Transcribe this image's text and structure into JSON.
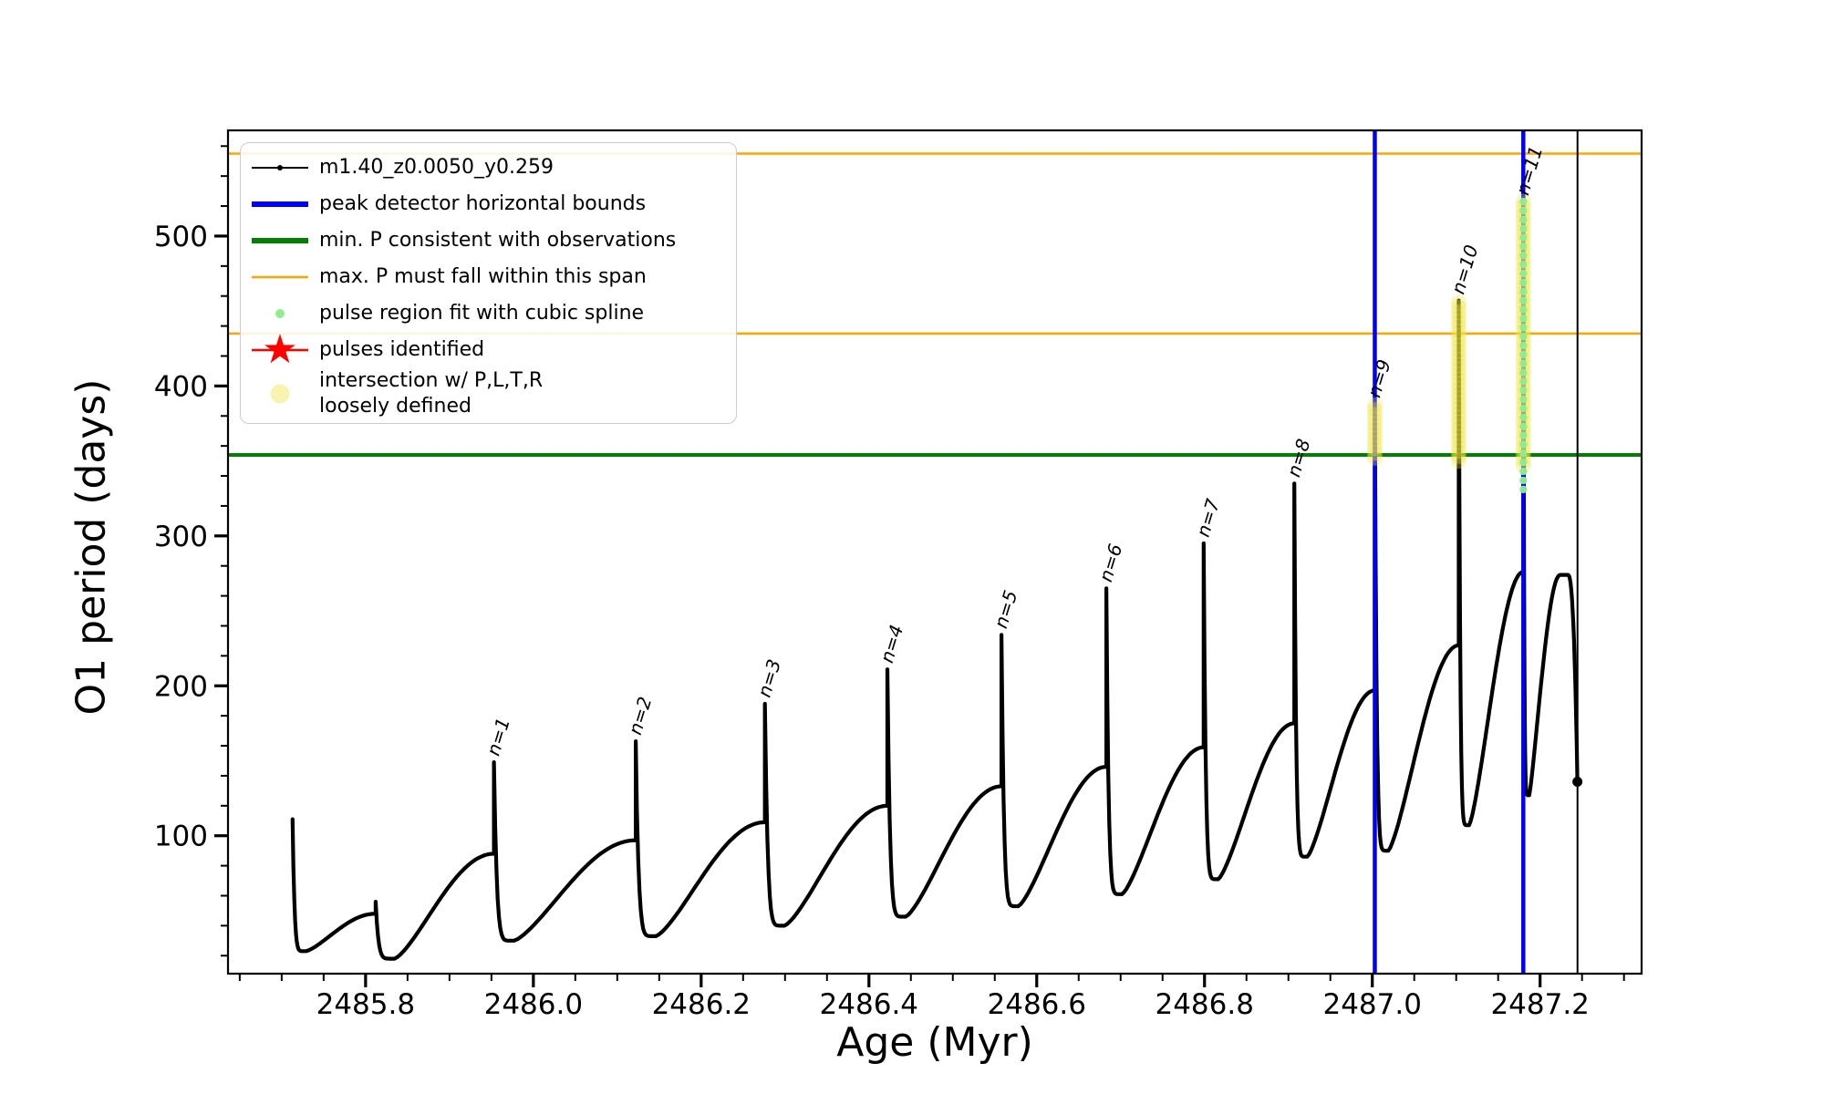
{
  "figure": {
    "background": "#ffffff"
  },
  "axes": {
    "xlabel": "Age (Myr)",
    "ylabel": "O1 period (days)",
    "x_tick_labels": [
      "2485.8",
      "2486.0",
      "2486.2",
      "2486.4",
      "2486.6",
      "2486.8",
      "2487.0",
      "2487.2"
    ],
    "y_tick_labels": [
      "100",
      "200",
      "300",
      "400",
      "500"
    ]
  },
  "legend": {
    "entries": [
      {
        "label": "m1.40_z0.0050_y0.259",
        "marker": "line_dot",
        "color": "#000000"
      },
      {
        "label": "peak detector horizontal bounds",
        "marker": "thick_line",
        "color": "#0000ff"
      },
      {
        "label": "min. P consistent with observations",
        "marker": "thick_line",
        "color": "#008000"
      },
      {
        "label": "max. P must fall within this span",
        "marker": "thin_line",
        "color": "#ffa500"
      },
      {
        "label": "pulse region fit with cubic spline",
        "marker": "dot_small",
        "color": "#90ee90"
      },
      {
        "label": "pulses identified",
        "marker": "star_line",
        "color": "#ff0000"
      },
      {
        "label": "intersection w/ P,L,T,R\nloosely defined",
        "marker": "dot_big",
        "color": "#f1ea62"
      }
    ]
  },
  "chart_data": {
    "type": "line",
    "title": "",
    "xlabel": "Age (Myr)",
    "ylabel": "O1 period (days)",
    "series_name": "m1.40_z0.0050_y0.259",
    "xlim": [
      2485.636,
      2487.321
    ],
    "ylim": [
      8,
      570.5
    ],
    "x_minor_step": 0.05,
    "y_minor_step": 20,
    "grid": false,
    "legend_position": "upper left",
    "colors": {
      "curve": "#000000",
      "peak_bounds": "#0000ff",
      "min_p": "#008000",
      "max_p": "#ffa500",
      "spline_fit": "#90ee90",
      "pulses_identified": "#ff0000",
      "intersection": "#efe73f",
      "terminal_line": "#000000"
    },
    "h_lines": [
      {
        "P": 555,
        "color_key": "max_p",
        "lw": 2.5,
        "name": "max-P-upper-line"
      },
      {
        "P": 435,
        "color_key": "max_p",
        "lw": 2.5,
        "name": "max-P-lower-line"
      },
      {
        "P": 354,
        "color_key": "min_p",
        "lw": 4,
        "name": "min-P-line"
      }
    ],
    "v_lines": [
      {
        "t": 2487.003,
        "color_key": "peak_bounds",
        "lw": 4.5,
        "name": "peak-bound-left"
      },
      {
        "t": 2487.18,
        "color_key": "peak_bounds",
        "lw": 4.5,
        "name": "peak-bound-right"
      },
      {
        "t": 2487.2446,
        "color_key": "terminal_line",
        "lw": 2,
        "name": "track-end-line"
      }
    ],
    "pulses": [
      {
        "label": "",
        "t": 2485.713,
        "peak": 111,
        "pre_max": null,
        "post_dip": 23
      },
      {
        "label": "",
        "t": 2485.812,
        "peak": 56,
        "pre_max": 48,
        "post_dip": 18
      },
      {
        "label": "n=1",
        "t": 2485.953,
        "peak": 149,
        "pre_max": 88,
        "post_dip": 30
      },
      {
        "label": "n=2",
        "t": 2486.122,
        "peak": 163,
        "pre_max": 97,
        "post_dip": 33
      },
      {
        "label": "n=3",
        "t": 2486.276,
        "peak": 188,
        "pre_max": 109,
        "post_dip": 40
      },
      {
        "label": "n=4",
        "t": 2486.422,
        "peak": 211,
        "pre_max": 120,
        "post_dip": 46
      },
      {
        "label": "n=5",
        "t": 2486.558,
        "peak": 234,
        "pre_max": 133,
        "post_dip": 53
      },
      {
        "label": "n=6",
        "t": 2486.683,
        "peak": 265,
        "pre_max": 146,
        "post_dip": 61
      },
      {
        "label": "n=7",
        "t": 2486.799,
        "peak": 295,
        "pre_max": 159,
        "post_dip": 71
      },
      {
        "label": "n=8",
        "t": 2486.907,
        "peak": 335,
        "pre_max": 175,
        "post_dip": 86
      },
      {
        "label": "n=9",
        "t": 2487.003,
        "peak": 388,
        "pre_max": 197,
        "post_dip": 90
      },
      {
        "label": "n=10",
        "t": 2487.103,
        "peak": 457,
        "pre_max": 227,
        "post_dip": 107
      },
      {
        "label": "n=11",
        "t": 2487.18,
        "peak": 523,
        "pre_max": 276,
        "post_dip": 127
      }
    ],
    "tail": {
      "top_t": 2487.224,
      "top_P": 274,
      "hold_dt": 0.009,
      "end_t": 2487.2445,
      "end_P": 136
    },
    "marker_columns": [
      {
        "t": 2487.003,
        "yellow": [
          352,
          388
        ],
        "green": null
      },
      {
        "t": 2487.103,
        "yellow": [
          350,
          457
        ],
        "green": null
      },
      {
        "t": 2487.18,
        "yellow": [
          347,
          523
        ],
        "green": [
          331,
          523
        ]
      }
    ]
  }
}
